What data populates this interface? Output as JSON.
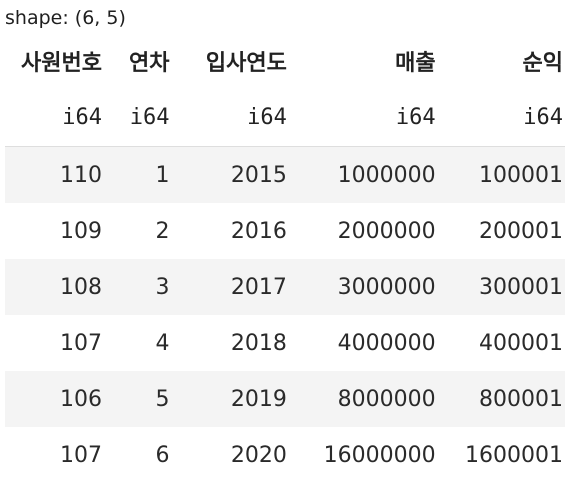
{
  "shape_label": "shape: (6, 5)",
  "columns": [
    {
      "name": "사원번호",
      "dtype": "i64"
    },
    {
      "name": "연차",
      "dtype": "i64"
    },
    {
      "name": "입사연도",
      "dtype": "i64"
    },
    {
      "name": "매출",
      "dtype": "i64"
    },
    {
      "name": "순익",
      "dtype": "i64"
    }
  ],
  "rows": [
    [
      "110",
      "1",
      "2015",
      "1000000",
      "100001"
    ],
    [
      "109",
      "2",
      "2016",
      "2000000",
      "200001"
    ],
    [
      "108",
      "3",
      "2017",
      "3000000",
      "300001"
    ],
    [
      "107",
      "4",
      "2018",
      "4000000",
      "400001"
    ],
    [
      "106",
      "5",
      "2019",
      "8000000",
      "800001"
    ],
    [
      "107",
      "6",
      "2020",
      "16000000",
      "1600001"
    ]
  ]
}
